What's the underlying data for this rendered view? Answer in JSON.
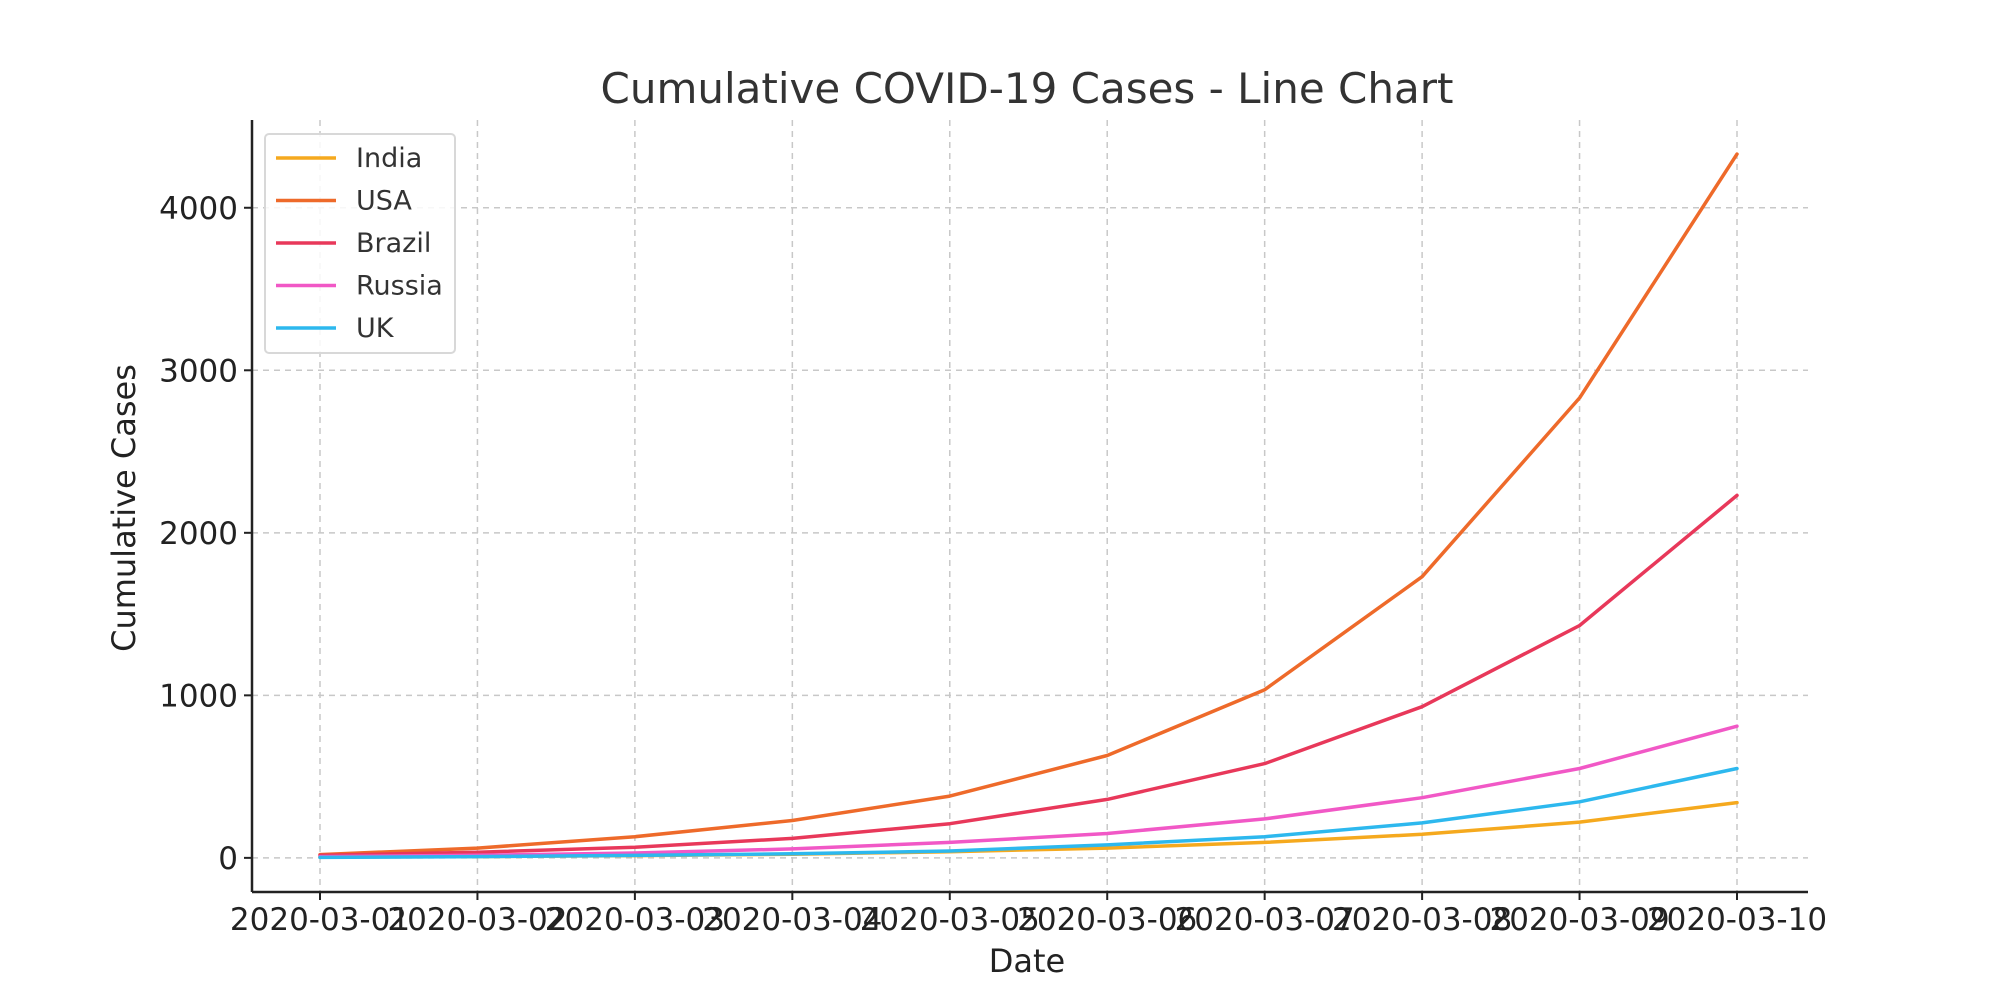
{
  "chart_data": {
    "type": "line",
    "title": "Cumulative COVID-19 Cases - Line Chart",
    "xlabel": "Date",
    "ylabel": "Cumulative Cases",
    "categories": [
      "2020-03-01",
      "2020-03-02",
      "2020-03-03",
      "2020-03-04",
      "2020-03-05",
      "2020-03-06",
      "2020-03-07",
      "2020-03-08",
      "2020-03-09",
      "2020-03-10"
    ],
    "ylim": [
      -210,
      4540
    ],
    "yticks": [
      0,
      1000,
      2000,
      3000,
      4000
    ],
    "grid": true,
    "legend_position": "top-left",
    "series": [
      {
        "name": "India",
        "color": "#F5A91E",
        "values": [
          5,
          8,
          14,
          22,
          38,
          60,
          95,
          145,
          220,
          340
        ]
      },
      {
        "name": "USA",
        "color": "#EE6A2A",
        "values": [
          20,
          60,
          130,
          230,
          380,
          630,
          1035,
          1730,
          2830,
          4330
        ]
      },
      {
        "name": "Brazil",
        "color": "#E8385A",
        "values": [
          15,
          35,
          65,
          120,
          210,
          360,
          580,
          930,
          1430,
          2230
        ]
      },
      {
        "name": "Russia",
        "color": "#F158C6",
        "values": [
          8,
          16,
          30,
          55,
          95,
          150,
          240,
          370,
          550,
          810
        ]
      },
      {
        "name": "UK",
        "color": "#2DB8EE",
        "values": [
          3,
          8,
          15,
          25,
          42,
          80,
          130,
          215,
          345,
          550
        ]
      }
    ]
  }
}
